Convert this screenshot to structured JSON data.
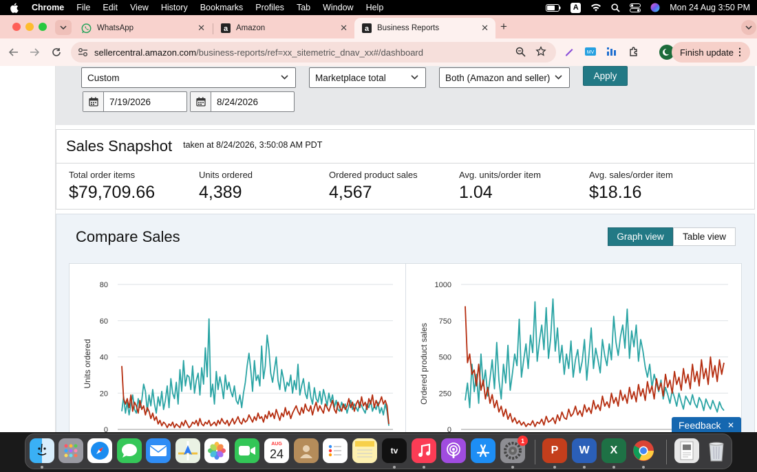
{
  "menubar": {
    "app": "Chrome",
    "items": [
      "File",
      "Edit",
      "View",
      "History",
      "Bookmarks",
      "Profiles",
      "Tab",
      "Window",
      "Help"
    ],
    "clock": "Mon 24 Aug  3:50 PM",
    "input_source": "A"
  },
  "tabs": [
    {
      "title": "WhatsApp",
      "icon": "whatsapp-icon"
    },
    {
      "title": "Amazon",
      "icon": "amazon-icon"
    },
    {
      "title": "Business Reports",
      "icon": "amazon-icon",
      "active": true
    }
  ],
  "toolbar": {
    "url_host": "sellercentral.amazon.com",
    "url_path": "/business-reports/ref=xx_sitemetric_dnav_xx#/dashboard",
    "finish_update": "Finish update"
  },
  "filters": {
    "date_range": "Custom",
    "marketplace": "Marketplace total",
    "fulfillment": "Both (Amazon and seller)",
    "apply": "Apply",
    "start_date": "7/19/2026",
    "end_date": "8/24/2026"
  },
  "snapshot": {
    "title": "Sales Snapshot",
    "taken": "taken at 8/24/2026, 3:50:08 AM PDT",
    "metrics": [
      {
        "label": "Total order items",
        "value": "$79,709.66"
      },
      {
        "label": "Units ordered",
        "value": "4,389"
      },
      {
        "label": "Ordered product sales",
        "value": "4,567"
      },
      {
        "label": "Avg. units/order item",
        "value": "1.04"
      },
      {
        "label": "Avg. sales/order item",
        "value": "$18.16"
      }
    ]
  },
  "compare": {
    "title": "Compare Sales",
    "graph_view": "Graph view",
    "table_view": "Table view"
  },
  "feedback": "Feedback",
  "dock": {
    "calendar_month": "AUG",
    "calendar_day": "24",
    "settings_badge": "1"
  },
  "colors": {
    "teal_series": "#2aa4a4",
    "red_series": "#b52d0f",
    "accent_button": "#227985",
    "feedback": "#1567b0"
  },
  "chart_data": [
    {
      "type": "line",
      "ylabel": "Units ordered",
      "ylim": [
        0,
        80
      ],
      "yticks": [
        0,
        20,
        40,
        60,
        80
      ],
      "series": [
        {
          "color": "#2aa4a4",
          "values": [
            10,
            18,
            9,
            15,
            8,
            14,
            19,
            11,
            9,
            17,
            12,
            16,
            25,
            21,
            10,
            19,
            13,
            22,
            14,
            9,
            18,
            13,
            21,
            11,
            16,
            24,
            12,
            28,
            20,
            17,
            26,
            14,
            33,
            21,
            38,
            24,
            30,
            29,
            22,
            35,
            20,
            27,
            31,
            19,
            34,
            25,
            45,
            29,
            61,
            18,
            25,
            14,
            32,
            22,
            29,
            24,
            17,
            30,
            22,
            26,
            21,
            18,
            24,
            16,
            14,
            19,
            12,
            20,
            26,
            35,
            42,
            33,
            21,
            38,
            27,
            30,
            24,
            46,
            28,
            35,
            52,
            44,
            31,
            26,
            33,
            40,
            27,
            22,
            33,
            28,
            21,
            26,
            24,
            30,
            20,
            27,
            22,
            36,
            19,
            24,
            28,
            20,
            17,
            26,
            18,
            14,
            23,
            17,
            15,
            21,
            14,
            22,
            18,
            13,
            20,
            15,
            19,
            12,
            16,
            11,
            10,
            15,
            12,
            14,
            9,
            13,
            16,
            11,
            14,
            12,
            10,
            15,
            13,
            11,
            9,
            14,
            12,
            16,
            10,
            13,
            11,
            15,
            9,
            12,
            8,
            14,
            10,
            2
          ]
        },
        {
          "color": "#b52d0f",
          "values": [
            35,
            17,
            14,
            17,
            12,
            19,
            10,
            15,
            13,
            9,
            16,
            11,
            13,
            8,
            12,
            10,
            6,
            9,
            5,
            7,
            3,
            5,
            2,
            4,
            3,
            1,
            3,
            2,
            4,
            1,
            3,
            2,
            1,
            4,
            2,
            5,
            3,
            1,
            2,
            4,
            3,
            5,
            2,
            6,
            3,
            2,
            4,
            3,
            5,
            2,
            3,
            4,
            2,
            5,
            3,
            6,
            4,
            3,
            5,
            2,
            4,
            6,
            3,
            5,
            7,
            4,
            3,
            6,
            4,
            5,
            8,
            6,
            4,
            7,
            5,
            9,
            6,
            7,
            4,
            8,
            6,
            10,
            7,
            9,
            6,
            11,
            8,
            5,
            9,
            7,
            12,
            8,
            10,
            6,
            9,
            11,
            13,
            10,
            8,
            12,
            9,
            14,
            11,
            10,
            13,
            8,
            12,
            15,
            10,
            13,
            11,
            9,
            14,
            12,
            10,
            13,
            16,
            11,
            9,
            15,
            12,
            10,
            14,
            11,
            13,
            17,
            12,
            15,
            10,
            14,
            16,
            12,
            18,
            13,
            15,
            11,
            17,
            14,
            19,
            12,
            16,
            13,
            15,
            18,
            14,
            16,
            13,
            3
          ]
        }
      ]
    },
    {
      "type": "line",
      "ylabel": "Ordered product sales",
      "ylim": [
        0,
        1000
      ],
      "yticks": [
        0,
        250,
        500,
        750,
        1000
      ],
      "series": [
        {
          "color": "#2aa4a4",
          "values": [
            200,
            320,
            150,
            450,
            260,
            380,
            180,
            520,
            300,
            410,
            230,
            350,
            480,
            280,
            600,
            340,
            210,
            450,
            320,
            580,
            270,
            390,
            520,
            440,
            760,
            360,
            480,
            590,
            420,
            650,
            530,
            880,
            470,
            610,
            720,
            550,
            840,
            490,
            630,
            900,
            540,
            700,
            460,
            580,
            380,
            520,
            420,
            610,
            360,
            480,
            550,
            390,
            470,
            620,
            340,
            510,
            700,
            420,
            560,
            480,
            390,
            620,
            510,
            440,
            590,
            480,
            780,
            600,
            510,
            640,
            720,
            560,
            830,
            490,
            680,
            570,
            720,
            470,
            620,
            540,
            430,
            360,
            450,
            290,
            380,
            320,
            260,
            340,
            210,
            290,
            240,
            180,
            270,
            220,
            160,
            250,
            190,
            140,
            230,
            200,
            170,
            240,
            180,
            150,
            220,
            190,
            130,
            210,
            170,
            140,
            200,
            160,
            120,
            190,
            150,
            130
          ]
        },
        {
          "color": "#b52d0f",
          "values": [
            850,
            460,
            520,
            380,
            410,
            300,
            450,
            270,
            340,
            210,
            290,
            180,
            240,
            150,
            200,
            120,
            160,
            90,
            140,
            70,
            110,
            50,
            80,
            40,
            60,
            30,
            50,
            20,
            40,
            30,
            60,
            20,
            50,
            40,
            70,
            30,
            90,
            50,
            60,
            80,
            40,
            100,
            60,
            120,
            80,
            70,
            140,
            90,
            110,
            160,
            100,
            130,
            90,
            170,
            120,
            150,
            110,
            200,
            140,
            170,
            130,
            230,
            160,
            190,
            150,
            250,
            180,
            220,
            160,
            270,
            200,
            240,
            180,
            290,
            210,
            260,
            190,
            310,
            230,
            280,
            200,
            330,
            250,
            300,
            210,
            350,
            270,
            320,
            230,
            380,
            290,
            340,
            250,
            400,
            310,
            360,
            270,
            420,
            320,
            380,
            280,
            450,
            330,
            400,
            300,
            480,
            350,
            420,
            310,
            500,
            360,
            440,
            330,
            480,
            380,
            460
          ]
        }
      ]
    }
  ]
}
